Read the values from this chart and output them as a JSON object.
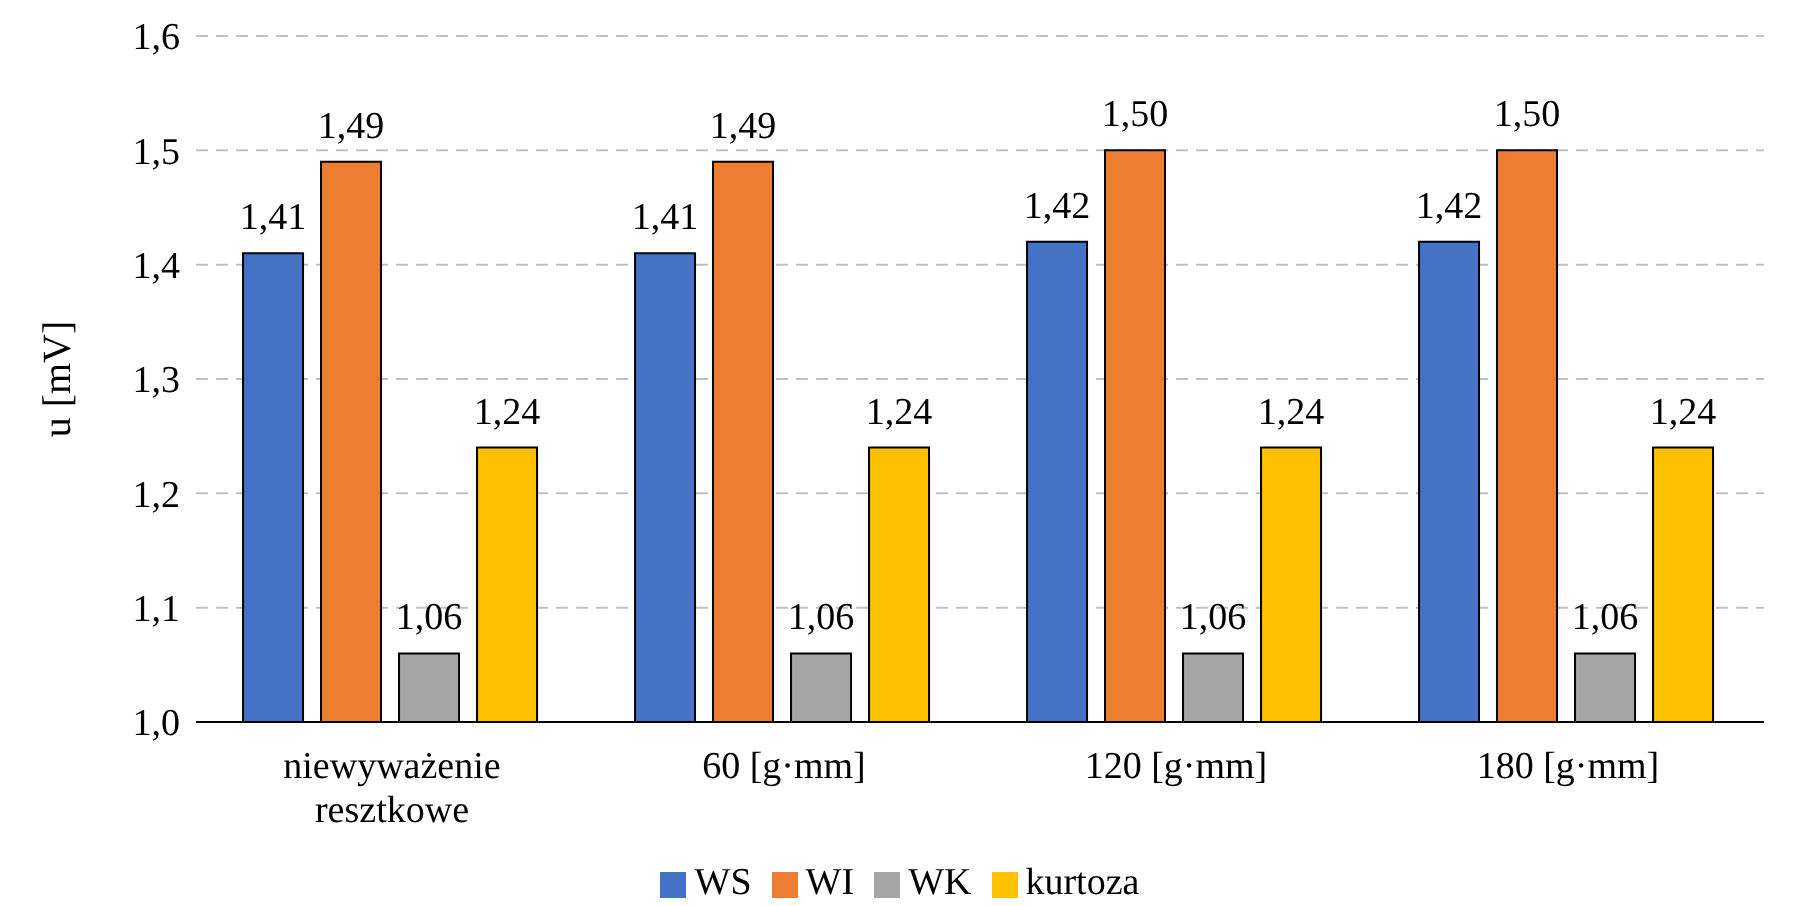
{
  "chart_data": {
    "type": "bar",
    "ylabel": "u [mV]",
    "categories": [
      "niewyważenie resztkowe",
      "60 [g·mm]",
      "120 [g·mm]",
      "180 [g·mm]"
    ],
    "series": [
      {
        "name": "WS",
        "color": "#4472c4",
        "values": [
          1.41,
          1.41,
          1.42,
          1.42
        ],
        "value_labels": [
          "1,41",
          "1,41",
          "1,42",
          "1,42"
        ]
      },
      {
        "name": "WI",
        "color": "#ed7d31",
        "values": [
          1.49,
          1.49,
          1.5,
          1.5
        ],
        "value_labels": [
          "1,49",
          "1,49",
          "1,50",
          "1,50"
        ]
      },
      {
        "name": "WK",
        "color": "#a5a5a5",
        "values": [
          1.06,
          1.06,
          1.06,
          1.06
        ],
        "value_labels": [
          "1,06",
          "1,06",
          "1,06",
          "1,06"
        ]
      },
      {
        "name": "kurtoza",
        "color": "#ffc000",
        "values": [
          1.24,
          1.24,
          1.24,
          1.24
        ],
        "value_labels": [
          "1,24",
          "1,24",
          "1,24",
          "1,24"
        ]
      }
    ],
    "ylim": [
      1.0,
      1.6
    ],
    "yticks": [
      {
        "value": 1.0,
        "label": "1,0"
      },
      {
        "value": 1.1,
        "label": "1,1"
      },
      {
        "value": 1.2,
        "label": "1,2"
      },
      {
        "value": 1.3,
        "label": "1,3"
      },
      {
        "value": 1.4,
        "label": "1,4"
      },
      {
        "value": 1.5,
        "label": "1,5"
      },
      {
        "value": 1.6,
        "label": "1,6"
      }
    ],
    "grid": "y",
    "legend": "bottom"
  }
}
